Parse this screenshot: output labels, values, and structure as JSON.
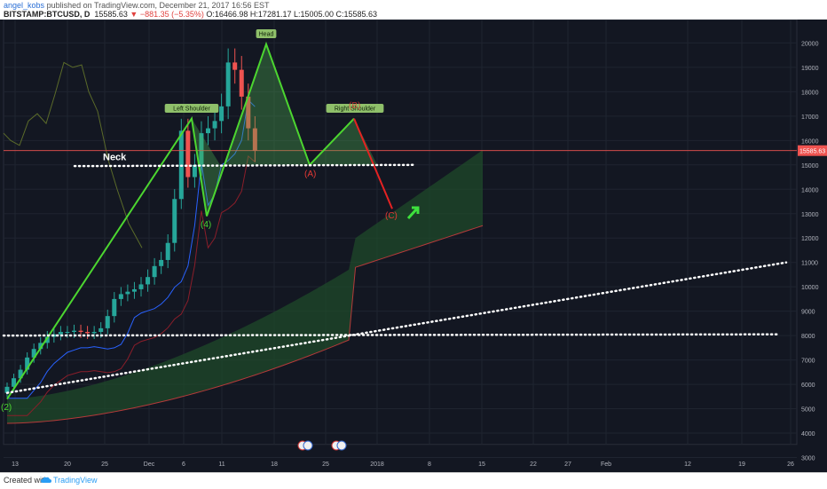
{
  "header": {
    "user": "angel_kobs",
    "published": "published on TradingView.com, December 21, 2017 16:56 EST",
    "symbol": "BITSTAMP:BTCUSD, D",
    "last": "15585.63",
    "change": "▼ −881.35 (−5.35%)",
    "ohlc": "O:16466.98 H:17281.17 L:15005.00 C:15585.63"
  },
  "footer": {
    "created": "Created with",
    "brand": "TradingView"
  },
  "chart_data": {
    "type": "candlestick",
    "symbol": "BITSTAMP:BTCUSD",
    "timeframe": "D",
    "ylim": [
      3900,
      20600
    ],
    "y_ticks": [
      3000,
      4000,
      5000,
      6000,
      7000,
      8000,
      9000,
      10000,
      11000,
      12000,
      13000,
      14000,
      15000,
      16000,
      17000,
      18000,
      19000,
      20000
    ],
    "x_ticks": [
      "13",
      "20",
      "25",
      "Dec",
      "6",
      "11",
      "18",
      "25",
      "2018",
      "8",
      "15",
      "22",
      "27",
      "Feb",
      "12",
      "19",
      "26"
    ],
    "last_price_label": "15585.63",
    "last_price": 15585.63,
    "candles_close": [
      5900,
      6250,
      6600,
      7100,
      7450,
      7700,
      7950,
      8050,
      8150,
      8150,
      8200,
      8150,
      8100,
      8150,
      8300,
      8800,
      9500,
      9700,
      9800,
      9900,
      10100,
      10400,
      10850,
      11100,
      11800,
      13600,
      16400,
      14500,
      15000,
      16300,
      16500,
      16800,
      17400,
      19200,
      18900,
      17800,
      16500,
      15585
    ],
    "annotations": {
      "head": "Head",
      "left_shoulder": "Left Shoulder",
      "right_shoulder": "Right Shoulder",
      "neck": "Neck",
      "wave_2": "(2)",
      "wave_4": "(4)",
      "wave_a": "(A)",
      "wave_b": "(B)",
      "wave_c": "(C)"
    }
  }
}
